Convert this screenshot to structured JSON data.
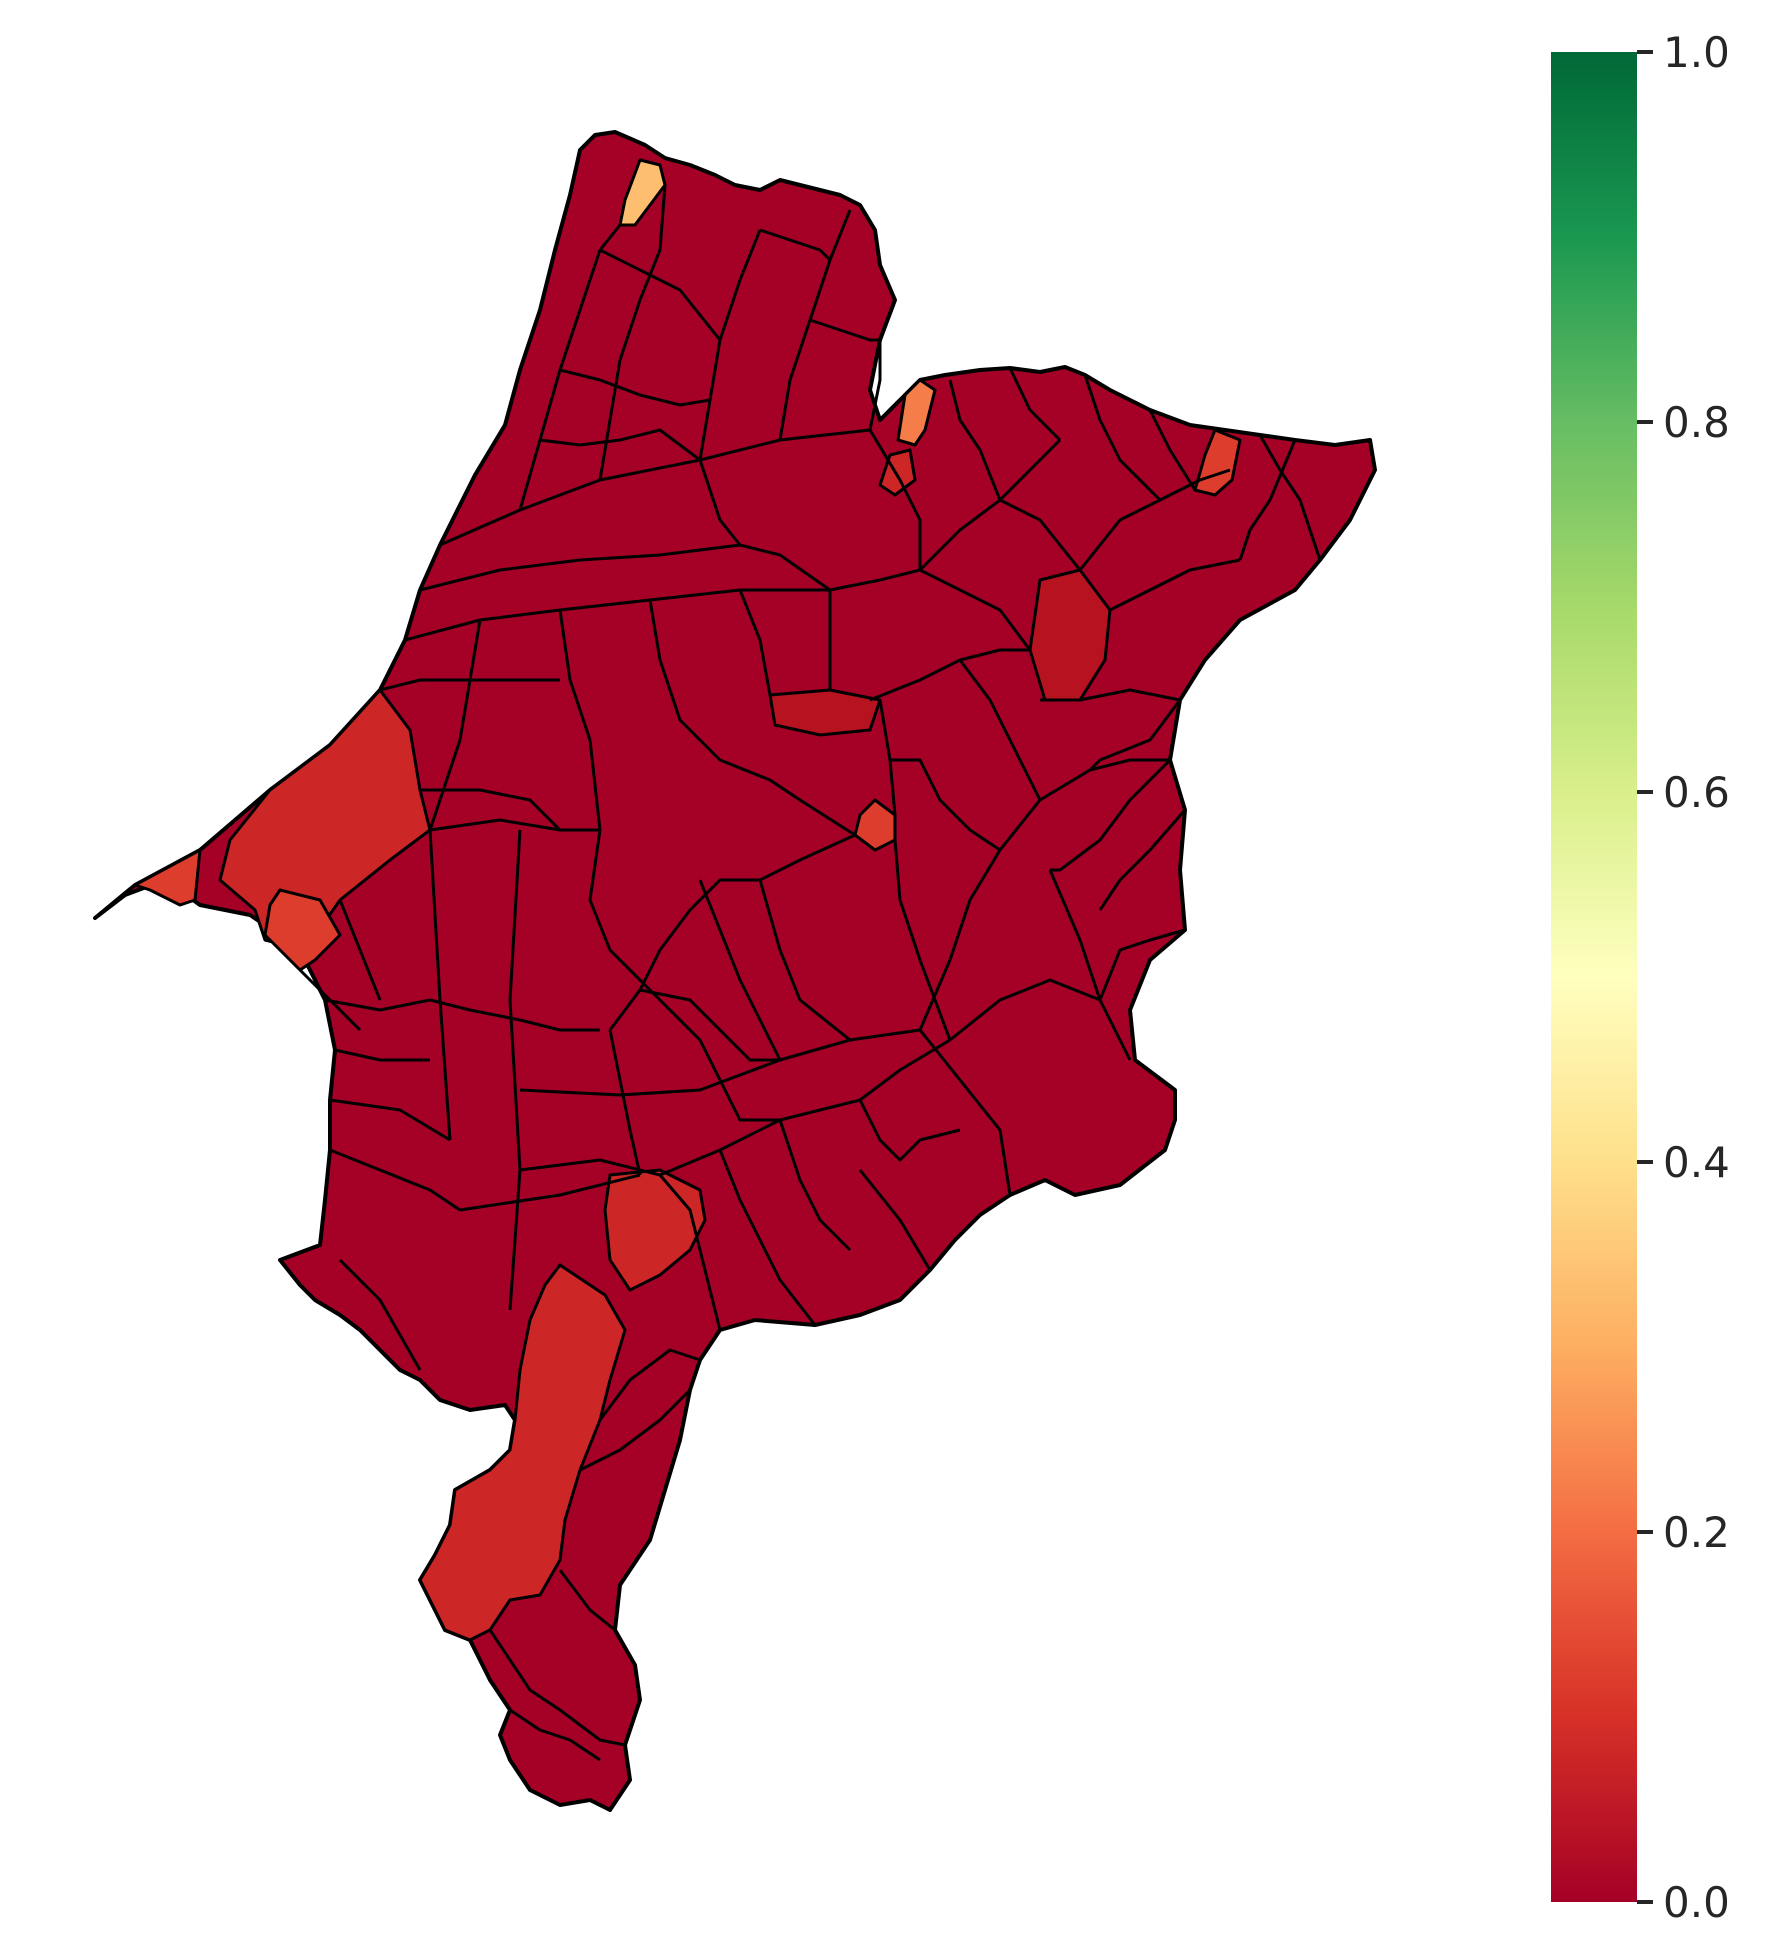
{
  "map": {
    "type": "choropleth",
    "colormap": "RdYlGn",
    "region_fill_colors": {
      "dominant": "#a50026",
      "minor_dark": "#b7121f",
      "mid": "#cc2627",
      "light_red": "#dd3d2d",
      "orange": "#f47d4a",
      "light_orange": "#fdbf6f"
    },
    "border_color": "#000000"
  },
  "colorbar": {
    "min": 0.0,
    "max": 1.0,
    "ticks": [
      {
        "value": 0.0,
        "label": "0.0"
      },
      {
        "value": 0.2,
        "label": "0.2"
      },
      {
        "value": 0.4,
        "label": "0.4"
      },
      {
        "value": 0.6,
        "label": "0.6"
      },
      {
        "value": 0.8,
        "label": "0.8"
      },
      {
        "value": 1.0,
        "label": "1.0"
      }
    ],
    "gradient_stops": [
      "#a50026",
      "#d73027",
      "#f46d43",
      "#fdae61",
      "#fee08b",
      "#ffffbf",
      "#d9ef8b",
      "#a6d96a",
      "#66bd63",
      "#1a9850",
      "#006837"
    ]
  }
}
